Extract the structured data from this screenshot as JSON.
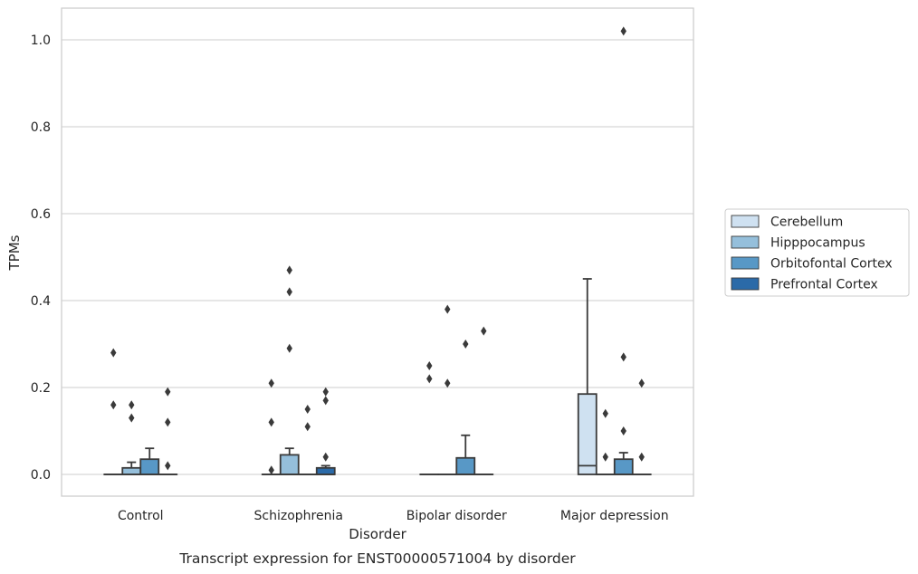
{
  "chart_data": {
    "type": "box",
    "title": "",
    "caption": "Transcript expression for ENST00000571004 by disorder",
    "xlabel": "Disorder",
    "ylabel": "TPMs",
    "ylim": [
      -0.05,
      1.07
    ],
    "yticks": [
      "0.0",
      "0.2",
      "0.4",
      "0.6",
      "0.8",
      "1.0"
    ],
    "ytick_values": [
      0.0,
      0.2,
      0.4,
      0.6,
      0.8,
      1.0
    ],
    "grid": "horizontal",
    "legend_position": "right",
    "categories": [
      "Control",
      "Schizophrenia",
      "Bipolar disorder",
      "Major depression"
    ],
    "series": [
      {
        "name": "Cerebellum",
        "color": "#cfe1f1",
        "boxes": [
          {
            "q1": 0,
            "median": 0,
            "q3": 0,
            "whisker_low": 0,
            "whisker_high": 0,
            "outliers": [
              0.28,
              0.16
            ]
          },
          {
            "q1": 0,
            "median": 0,
            "q3": 0,
            "whisker_low": 0,
            "whisker_high": 0,
            "outliers": [
              0.01,
              0.12,
              0.21
            ]
          },
          {
            "q1": 0,
            "median": 0,
            "q3": 0,
            "whisker_low": 0,
            "whisker_high": 0,
            "outliers": [
              0.25,
              0.22
            ]
          },
          {
            "q1": 0,
            "median": 0.02,
            "q3": 0.185,
            "whisker_low": 0,
            "whisker_high": 0.45,
            "outliers": []
          }
        ]
      },
      {
        "name": "Hipppocampus",
        "color": "#95bfdb",
        "boxes": [
          {
            "q1": 0,
            "median": 0,
            "q3": 0.015,
            "whisker_low": 0,
            "whisker_high": 0.028,
            "outliers": [
              0.16,
              0.13
            ]
          },
          {
            "q1": 0,
            "median": 0,
            "q3": 0.045,
            "whisker_low": 0,
            "whisker_high": 0.06,
            "outliers": [
              0.47,
              0.42,
              0.29
            ]
          },
          {
            "q1": 0,
            "median": 0,
            "q3": 0,
            "whisker_low": 0,
            "whisker_high": 0,
            "outliers": [
              0.38,
              0.21
            ]
          },
          {
            "q1": 0,
            "median": 0,
            "q3": 0,
            "whisker_low": 0,
            "whisker_high": 0,
            "outliers": [
              0.14,
              0.04
            ]
          }
        ]
      },
      {
        "name": "Orbitofontal Cortex",
        "color": "#5898c6",
        "boxes": [
          {
            "q1": 0,
            "median": 0,
            "q3": 0.035,
            "whisker_low": 0,
            "whisker_high": 0.06,
            "outliers": []
          },
          {
            "q1": 0,
            "median": 0,
            "q3": 0,
            "whisker_low": 0,
            "whisker_high": 0,
            "outliers": [
              0.15,
              0.11
            ]
          },
          {
            "q1": 0,
            "median": 0,
            "q3": 0.038,
            "whisker_low": 0,
            "whisker_high": 0.09,
            "outliers": [
              0.3
            ]
          },
          {
            "q1": 0,
            "median": 0,
            "q3": 0.035,
            "whisker_low": 0,
            "whisker_high": 0.05,
            "outliers": [
              1.02,
              0.27,
              0.1
            ]
          }
        ]
      },
      {
        "name": "Prefrontal Cortex",
        "color": "#2b6aa8",
        "boxes": [
          {
            "q1": 0,
            "median": 0,
            "q3": 0,
            "whisker_low": 0,
            "whisker_high": 0,
            "outliers": [
              0.19,
              0.12,
              0.02
            ]
          },
          {
            "q1": 0,
            "median": 0,
            "q3": 0.015,
            "whisker_low": 0,
            "whisker_high": 0.02,
            "outliers": [
              0.19,
              0.17,
              0.04
            ]
          },
          {
            "q1": 0,
            "median": 0,
            "q3": 0,
            "whisker_low": 0,
            "whisker_high": 0,
            "outliers": [
              0.33
            ]
          },
          {
            "q1": 0,
            "median": 0,
            "q3": 0,
            "whisker_low": 0,
            "whisker_high": 0,
            "outliers": [
              0.21,
              0.04
            ]
          }
        ]
      }
    ]
  }
}
